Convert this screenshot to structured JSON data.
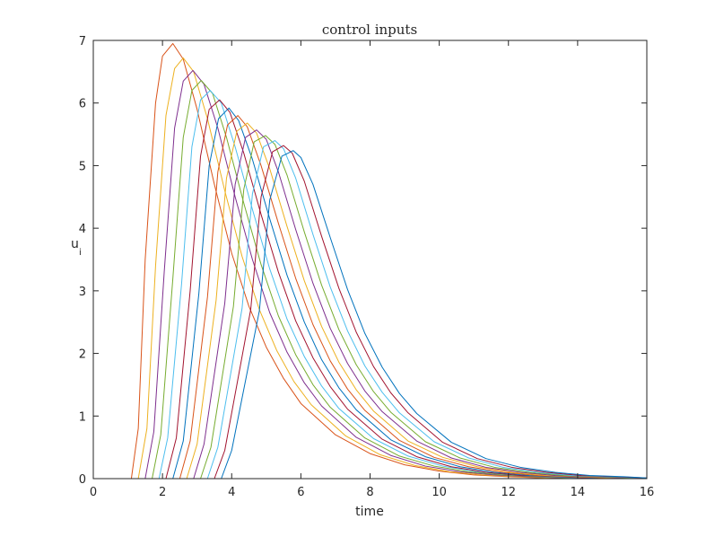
{
  "chart_data": {
    "type": "line",
    "title": "control inputs",
    "xlabel": "time",
    "ylabel": "u",
    "ylabel_subscript": "i",
    "xlim": [
      0,
      16
    ],
    "ylim": [
      0,
      7
    ],
    "xticks": [
      "0",
      "2",
      "4",
      "6",
      "8",
      "10",
      "12",
      "14",
      "16"
    ],
    "yticks": [
      "0",
      "1",
      "2",
      "3",
      "4",
      "5",
      "6",
      "7"
    ],
    "grid": false,
    "colors": [
      "#0072BD",
      "#D95319",
      "#EDB120",
      "#7E2F8E",
      "#77AC30",
      "#4DBEEE",
      "#A2142F"
    ],
    "series": [
      {
        "color": "#D95319",
        "x": [
          0,
          1.1,
          1.3,
          1.5,
          1.8,
          2.0,
          2.3,
          2.6,
          3.0,
          3.5,
          4.0,
          4.5,
          5.0,
          5.5,
          6.0,
          7.0,
          8.0,
          9.0,
          10.0,
          11.0,
          12.0,
          13.0,
          16.0
        ],
        "y": [
          0,
          0,
          0.8,
          3.5,
          6.0,
          6.75,
          6.95,
          6.7,
          5.9,
          4.7,
          3.6,
          2.75,
          2.1,
          1.6,
          1.2,
          0.7,
          0.4,
          0.22,
          0.12,
          0.06,
          0.03,
          0.01,
          0
        ]
      },
      {
        "color": "#EDB120",
        "x": [
          0,
          1.3,
          1.55,
          1.8,
          2.1,
          2.35,
          2.6,
          2.9,
          3.3,
          3.8,
          4.3,
          4.8,
          5.3,
          5.8,
          6.3,
          7.3,
          8.3,
          9.3,
          10.3,
          11.3,
          12.3,
          13.3,
          16.0
        ],
        "y": [
          0,
          0,
          0.8,
          3.4,
          5.8,
          6.55,
          6.72,
          6.5,
          5.75,
          4.6,
          3.55,
          2.7,
          2.05,
          1.55,
          1.18,
          0.68,
          0.38,
          0.21,
          0.11,
          0.06,
          0.03,
          0.01,
          0
        ]
      },
      {
        "color": "#7E2F8E",
        "x": [
          0,
          1.5,
          1.75,
          2.05,
          2.35,
          2.6,
          2.88,
          3.2,
          3.6,
          4.1,
          4.6,
          5.1,
          5.6,
          6.1,
          6.6,
          7.6,
          8.6,
          9.6,
          10.6,
          11.6,
          12.6,
          13.6,
          16.0
        ],
        "y": [
          0,
          0,
          0.75,
          3.3,
          5.6,
          6.35,
          6.52,
          6.3,
          5.6,
          4.5,
          3.5,
          2.65,
          2.02,
          1.53,
          1.16,
          0.66,
          0.37,
          0.2,
          0.11,
          0.06,
          0.03,
          0.01,
          0
        ]
      },
      {
        "color": "#77AC30",
        "x": [
          0,
          1.7,
          1.95,
          2.3,
          2.6,
          2.85,
          3.12,
          3.45,
          3.85,
          4.35,
          4.85,
          5.35,
          5.85,
          6.35,
          6.85,
          7.85,
          8.85,
          9.85,
          10.85,
          11.85,
          12.85,
          13.85,
          16.0
        ],
        "y": [
          0,
          0,
          0.7,
          3.2,
          5.45,
          6.2,
          6.36,
          6.15,
          5.45,
          4.4,
          3.42,
          2.6,
          1.98,
          1.5,
          1.14,
          0.65,
          0.36,
          0.2,
          0.11,
          0.06,
          0.03,
          0.01,
          0
        ]
      },
      {
        "color": "#4DBEEE",
        "x": [
          0,
          1.9,
          2.15,
          2.55,
          2.85,
          3.1,
          3.38,
          3.7,
          4.1,
          4.6,
          5.1,
          5.6,
          6.1,
          6.6,
          7.1,
          8.1,
          9.1,
          10.1,
          11.1,
          12.1,
          13.1,
          14.1,
          16.0
        ],
        "y": [
          0,
          0,
          0.65,
          3.1,
          5.3,
          6.05,
          6.2,
          6.0,
          5.3,
          4.3,
          3.35,
          2.55,
          1.95,
          1.48,
          1.12,
          0.64,
          0.36,
          0.2,
          0.11,
          0.06,
          0.03,
          0.01,
          0
        ]
      },
      {
        "color": "#A2142F",
        "x": [
          0,
          2.1,
          2.4,
          2.8,
          3.1,
          3.35,
          3.65,
          3.95,
          4.35,
          4.85,
          5.35,
          5.85,
          6.35,
          6.85,
          7.35,
          8.35,
          9.35,
          10.35,
          11.35,
          12.35,
          13.35,
          14.35,
          16.0
        ],
        "y": [
          0,
          0,
          0.65,
          3.0,
          5.15,
          5.9,
          6.05,
          5.85,
          5.2,
          4.22,
          3.3,
          2.52,
          1.93,
          1.47,
          1.11,
          0.63,
          0.35,
          0.19,
          0.1,
          0.05,
          0.03,
          0.01,
          0
        ]
      },
      {
        "color": "#0072BD",
        "x": [
          0,
          2.3,
          2.6,
          3.05,
          3.35,
          3.62,
          3.92,
          4.2,
          4.6,
          5.1,
          5.6,
          6.1,
          6.6,
          7.1,
          7.6,
          8.6,
          9.6,
          10.6,
          11.6,
          12.6,
          13.6,
          14.6,
          16.0
        ],
        "y": [
          0,
          0,
          0.6,
          2.95,
          5.0,
          5.75,
          5.92,
          5.72,
          5.1,
          4.15,
          3.25,
          2.5,
          1.9,
          1.45,
          1.1,
          0.62,
          0.35,
          0.19,
          0.1,
          0.05,
          0.03,
          0.01,
          0
        ]
      },
      {
        "color": "#D95319",
        "x": [
          0,
          2.5,
          2.8,
          3.3,
          3.6,
          3.88,
          4.18,
          4.45,
          4.85,
          5.35,
          5.85,
          6.35,
          6.85,
          7.35,
          7.85,
          8.85,
          9.85,
          10.85,
          11.85,
          12.85,
          13.85,
          14.85,
          16.0
        ],
        "y": [
          0,
          0,
          0.6,
          2.9,
          4.9,
          5.65,
          5.8,
          5.62,
          5.0,
          4.08,
          3.2,
          2.46,
          1.88,
          1.43,
          1.09,
          0.61,
          0.34,
          0.19,
          0.1,
          0.05,
          0.03,
          0.01,
          0
        ]
      },
      {
        "color": "#EDB120",
        "x": [
          0,
          2.7,
          3.0,
          3.55,
          3.85,
          4.15,
          4.45,
          4.72,
          5.1,
          5.6,
          6.1,
          6.6,
          7.1,
          7.6,
          8.1,
          9.1,
          10.1,
          11.1,
          12.1,
          13.1,
          14.1,
          15.1,
          16.0
        ],
        "y": [
          0,
          0,
          0.55,
          2.85,
          4.8,
          5.55,
          5.68,
          5.52,
          4.95,
          4.03,
          3.16,
          2.43,
          1.86,
          1.42,
          1.08,
          0.6,
          0.34,
          0.19,
          0.1,
          0.05,
          0.03,
          0.01,
          0
        ]
      },
      {
        "color": "#7E2F8E",
        "x": [
          0,
          2.9,
          3.2,
          3.8,
          4.1,
          4.4,
          4.72,
          5.0,
          5.35,
          5.85,
          6.35,
          6.85,
          7.35,
          7.85,
          8.35,
          9.35,
          10.35,
          11.35,
          12.35,
          13.35,
          14.35,
          15.35,
          16.0
        ],
        "y": [
          0,
          0,
          0.55,
          2.8,
          4.7,
          5.45,
          5.57,
          5.42,
          4.9,
          3.98,
          3.12,
          2.4,
          1.84,
          1.4,
          1.07,
          0.6,
          0.33,
          0.18,
          0.1,
          0.05,
          0.03,
          0.01,
          0
        ]
      },
      {
        "color": "#77AC30",
        "x": [
          0,
          3.1,
          3.4,
          4.05,
          4.35,
          4.65,
          4.98,
          5.25,
          5.6,
          6.1,
          6.6,
          7.1,
          7.6,
          8.1,
          8.6,
          9.6,
          10.6,
          11.6,
          12.6,
          13.6,
          14.6,
          15.6,
          16.0
        ],
        "y": [
          0,
          0,
          0.5,
          2.75,
          4.62,
          5.38,
          5.48,
          5.34,
          4.85,
          3.94,
          3.09,
          2.38,
          1.82,
          1.39,
          1.06,
          0.59,
          0.33,
          0.18,
          0.1,
          0.05,
          0.03,
          0.01,
          0
        ]
      },
      {
        "color": "#4DBEEE",
        "x": [
          0,
          3.3,
          3.6,
          4.3,
          4.6,
          4.92,
          5.25,
          5.5,
          5.85,
          6.35,
          6.85,
          7.35,
          7.85,
          8.35,
          8.85,
          9.85,
          10.85,
          11.85,
          12.85,
          13.85,
          14.85,
          15.85,
          16.0
        ],
        "y": [
          0,
          0,
          0.5,
          2.72,
          4.55,
          5.3,
          5.4,
          5.27,
          4.8,
          3.9,
          3.06,
          2.36,
          1.8,
          1.38,
          1.05,
          0.59,
          0.33,
          0.18,
          0.1,
          0.05,
          0.03,
          0.01,
          0
        ]
      },
      {
        "color": "#A2142F",
        "x": [
          0,
          3.5,
          3.8,
          4.55,
          4.85,
          5.18,
          5.5,
          5.75,
          6.1,
          6.6,
          7.1,
          7.6,
          8.1,
          8.6,
          9.1,
          10.1,
          11.1,
          12.1,
          13.1,
          14.1,
          15.1,
          16.0
        ],
        "y": [
          0,
          0,
          0.45,
          2.7,
          4.5,
          5.22,
          5.32,
          5.2,
          4.75,
          3.87,
          3.04,
          2.34,
          1.79,
          1.37,
          1.05,
          0.58,
          0.32,
          0.18,
          0.1,
          0.05,
          0.03,
          0.01
        ]
      },
      {
        "color": "#0072BD",
        "x": [
          0,
          3.7,
          4.0,
          4.8,
          5.1,
          5.45,
          5.78,
          6.0,
          6.35,
          6.85,
          7.35,
          7.85,
          8.35,
          8.85,
          9.35,
          10.35,
          11.35,
          12.35,
          13.35,
          14.35,
          15.35,
          16.0
        ],
        "y": [
          0,
          0,
          0.45,
          2.68,
          4.45,
          5.15,
          5.24,
          5.13,
          4.7,
          3.85,
          3.02,
          2.32,
          1.78,
          1.36,
          1.04,
          0.58,
          0.32,
          0.18,
          0.1,
          0.05,
          0.03,
          0.01
        ]
      }
    ]
  }
}
